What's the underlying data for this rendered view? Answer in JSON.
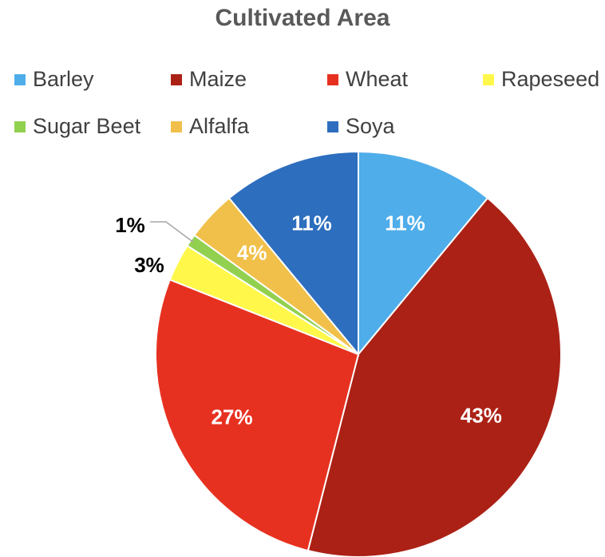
{
  "chart_data": {
    "type": "pie",
    "title": "Cultivated Area",
    "legend_position": "top",
    "slices": [
      {
        "label": "Barley",
        "value": 11,
        "display": "11%",
        "color": "#4fadea",
        "label_color": "#ffffff"
      },
      {
        "label": "Maize",
        "value": 43,
        "display": "43%",
        "color": "#ab2116",
        "label_color": "#ffffff"
      },
      {
        "label": "Wheat",
        "value": 27,
        "display": "27%",
        "color": "#e73120",
        "label_color": "#ffffff"
      },
      {
        "label": "Rapeseed",
        "value": 3,
        "display": "3%",
        "color": "#fff84a",
        "label_color": "#000000"
      },
      {
        "label": "Sugar Beet",
        "value": 1,
        "display": "1%",
        "color": "#92d050",
        "label_color": "#000000"
      },
      {
        "label": "Alfalfa",
        "value": 4,
        "display": "4%",
        "color": "#f1c04a",
        "label_color": "#ffffff"
      },
      {
        "label": "Soya",
        "value": 11,
        "display": "11%",
        "color": "#2d6ebe",
        "label_color": "#ffffff"
      }
    ]
  }
}
